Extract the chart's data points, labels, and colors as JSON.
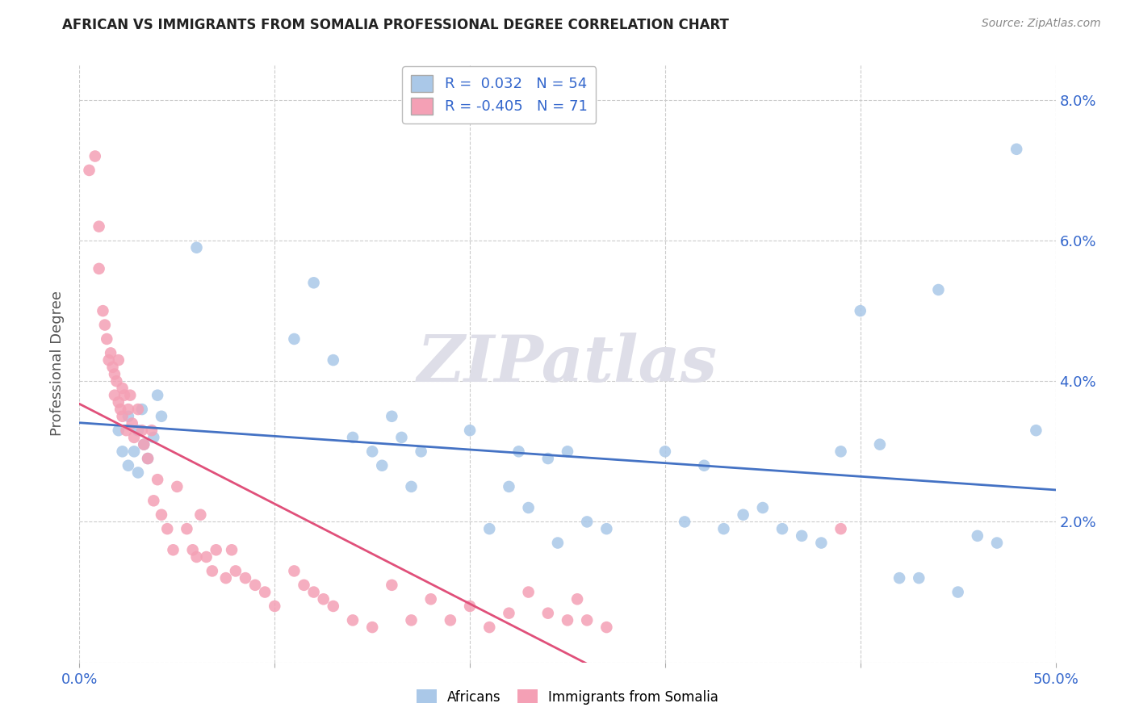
{
  "title": "AFRICAN VS IMMIGRANTS FROM SOMALIA PROFESSIONAL DEGREE CORRELATION CHART",
  "source": "Source: ZipAtlas.com",
  "ylabel": "Professional Degree",
  "xlim": [
    0.0,
    0.5
  ],
  "ylim": [
    0.0,
    0.085
  ],
  "xticks": [
    0.0,
    0.1,
    0.2,
    0.3,
    0.4,
    0.5
  ],
  "yticks": [
    0.0,
    0.02,
    0.04,
    0.06,
    0.08
  ],
  "ytick_labels": [
    "",
    "2.0%",
    "4.0%",
    "6.0%",
    "8.0%"
  ],
  "xtick_labels": [
    "0.0%",
    "",
    "",
    "",
    "",
    "50.0%"
  ],
  "africans_color": "#aac8e8",
  "somalia_color": "#f4a0b5",
  "africans_line_color": "#4472c4",
  "somalia_line_color": "#e0507a",
  "watermark": "ZIPatlas",
  "africans_x": [
    0.02,
    0.022,
    0.025,
    0.025,
    0.028,
    0.03,
    0.03,
    0.032,
    0.033,
    0.035,
    0.038,
    0.04,
    0.042,
    0.06,
    0.11,
    0.12,
    0.13,
    0.14,
    0.15,
    0.155,
    0.16,
    0.165,
    0.17,
    0.175,
    0.2,
    0.21,
    0.22,
    0.225,
    0.23,
    0.24,
    0.245,
    0.25,
    0.26,
    0.27,
    0.3,
    0.31,
    0.32,
    0.33,
    0.34,
    0.35,
    0.36,
    0.37,
    0.38,
    0.39,
    0.4,
    0.41,
    0.42,
    0.43,
    0.44,
    0.45,
    0.46,
    0.47,
    0.48,
    0.49
  ],
  "africans_y": [
    0.033,
    0.03,
    0.035,
    0.028,
    0.03,
    0.033,
    0.027,
    0.036,
    0.031,
    0.029,
    0.032,
    0.038,
    0.035,
    0.059,
    0.046,
    0.054,
    0.043,
    0.032,
    0.03,
    0.028,
    0.035,
    0.032,
    0.025,
    0.03,
    0.033,
    0.019,
    0.025,
    0.03,
    0.022,
    0.029,
    0.017,
    0.03,
    0.02,
    0.019,
    0.03,
    0.02,
    0.028,
    0.019,
    0.021,
    0.022,
    0.019,
    0.018,
    0.017,
    0.03,
    0.05,
    0.031,
    0.012,
    0.012,
    0.053,
    0.01,
    0.018,
    0.017,
    0.073,
    0.033
  ],
  "somalia_x": [
    0.005,
    0.008,
    0.01,
    0.01,
    0.012,
    0.013,
    0.014,
    0.015,
    0.016,
    0.017,
    0.018,
    0.018,
    0.019,
    0.02,
    0.02,
    0.021,
    0.022,
    0.022,
    0.023,
    0.024,
    0.025,
    0.026,
    0.027,
    0.028,
    0.03,
    0.032,
    0.033,
    0.035,
    0.037,
    0.038,
    0.04,
    0.042,
    0.045,
    0.048,
    0.05,
    0.055,
    0.058,
    0.06,
    0.062,
    0.065,
    0.068,
    0.07,
    0.075,
    0.078,
    0.08,
    0.085,
    0.09,
    0.095,
    0.1,
    0.11,
    0.115,
    0.12,
    0.125,
    0.13,
    0.14,
    0.15,
    0.16,
    0.17,
    0.18,
    0.19,
    0.2,
    0.21,
    0.22,
    0.23,
    0.24,
    0.25,
    0.255,
    0.26,
    0.27,
    0.39
  ],
  "somalia_y": [
    0.07,
    0.072,
    0.062,
    0.056,
    0.05,
    0.048,
    0.046,
    0.043,
    0.044,
    0.042,
    0.041,
    0.038,
    0.04,
    0.043,
    0.037,
    0.036,
    0.039,
    0.035,
    0.038,
    0.033,
    0.036,
    0.038,
    0.034,
    0.032,
    0.036,
    0.033,
    0.031,
    0.029,
    0.033,
    0.023,
    0.026,
    0.021,
    0.019,
    0.016,
    0.025,
    0.019,
    0.016,
    0.015,
    0.021,
    0.015,
    0.013,
    0.016,
    0.012,
    0.016,
    0.013,
    0.012,
    0.011,
    0.01,
    0.008,
    0.013,
    0.011,
    0.01,
    0.009,
    0.008,
    0.006,
    0.005,
    0.011,
    0.006,
    0.009,
    0.006,
    0.008,
    0.005,
    0.007,
    0.01,
    0.007,
    0.006,
    0.009,
    0.006,
    0.005,
    0.019
  ]
}
